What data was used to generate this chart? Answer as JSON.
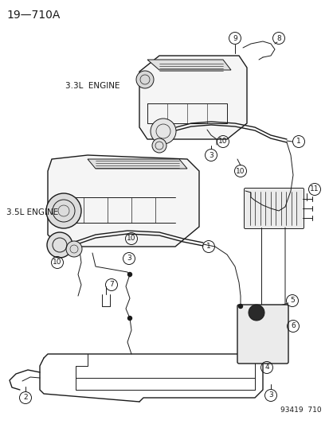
{
  "bg_color": "#ffffff",
  "line_color": "#1a1a1a",
  "title": "19—710A",
  "footer": "93419  710",
  "label_33": "3.3L  ENGINE",
  "label_35": "3.5L ENGINE",
  "figsize": [
    4.14,
    5.33
  ],
  "dpi": 100,
  "title_fontsize": 10,
  "label_fontsize": 7.5,
  "footer_fontsize": 6.5,
  "circle_r": 7.5,
  "circle_fontsize": 6.5
}
